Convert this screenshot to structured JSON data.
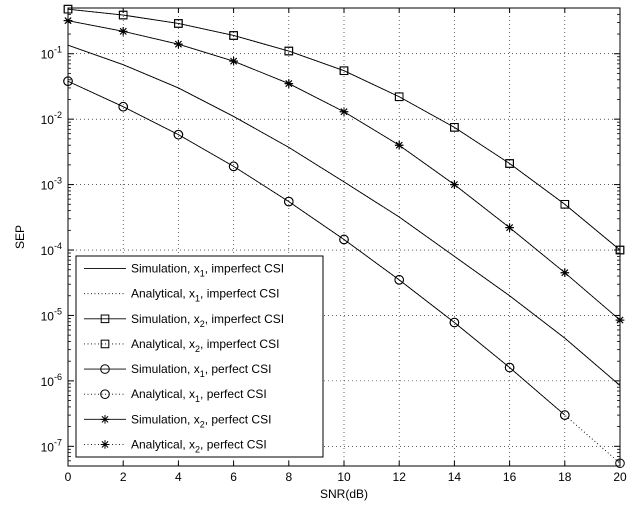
{
  "chart_data": {
    "type": "line",
    "xlabel": "SNR(dB)",
    "ylabel": "SEP",
    "xlim": [
      0,
      20
    ],
    "ylim": [
      5e-08,
      0.5
    ],
    "yscale": "log",
    "grid": true,
    "legend_position": "bottom-left",
    "x_ticks": [
      "0",
      "2",
      "4",
      "6",
      "8",
      "10",
      "12",
      "14",
      "16",
      "18",
      "20"
    ],
    "y_ticks": [
      {
        "base": "10",
        "exp": "-1"
      },
      {
        "base": "10",
        "exp": "-2"
      },
      {
        "base": "10",
        "exp": "-3"
      },
      {
        "base": "10",
        "exp": "-4"
      },
      {
        "base": "10",
        "exp": "-5"
      },
      {
        "base": "10",
        "exp": "-6"
      },
      {
        "base": "10",
        "exp": "-7"
      }
    ],
    "x": [
      0,
      2,
      4,
      6,
      8,
      10,
      12,
      14,
      16,
      18,
      20
    ],
    "series": [
      {
        "name_pre": "Simulation, x",
        "name_sub": "1",
        "name_post": ", imperfect CSI",
        "line": "solid",
        "marker": "none",
        "values": [
          0.135,
          0.068,
          0.03,
          0.011,
          0.0037,
          0.0011,
          0.00032,
          8e-05,
          2e-05,
          4.5e-06,
          8.5e-07
        ]
      },
      {
        "name_pre": "Analytical, x",
        "name_sub": "1",
        "name_post": ", imperfect CSI",
        "line": "dotted",
        "marker": "none",
        "values": [
          0.135,
          0.068,
          0.03,
          0.011,
          0.0037,
          0.0011,
          0.00032,
          8e-05,
          2e-05,
          4.5e-06,
          8.5e-07
        ]
      },
      {
        "name_pre": "Simulation, x",
        "name_sub": "2",
        "name_post": ", imperfect CSI",
        "line": "solid",
        "marker": "square",
        "values": [
          0.48,
          0.39,
          0.29,
          0.19,
          0.11,
          0.055,
          0.022,
          0.0075,
          0.0021,
          0.0005,
          0.0001
        ]
      },
      {
        "name_pre": "Analytical, x",
        "name_sub": "2",
        "name_post": ", imperfect CSI",
        "line": "dotted",
        "marker": "square",
        "values": [
          0.48,
          0.39,
          0.29,
          0.19,
          0.11,
          0.055,
          0.022,
          0.0075,
          0.0021,
          0.0005,
          0.0001
        ]
      },
      {
        "name_pre": "Simulation, x",
        "name_sub": "1",
        "name_post": ", perfect CSI",
        "line": "solid",
        "marker": "circle",
        "values": [
          0.038,
          0.0155,
          0.0058,
          0.0019,
          0.00055,
          0.000145,
          3.5e-05,
          7.8e-06,
          1.6e-06,
          3e-07,
          null
        ]
      },
      {
        "name_pre": "Analytical, x",
        "name_sub": "1",
        "name_post": ", perfect CSI",
        "line": "dotted",
        "marker": "circle",
        "values": [
          0.038,
          0.0155,
          0.0058,
          0.0019,
          0.00055,
          0.000145,
          3.5e-05,
          7.8e-06,
          1.6e-06,
          3e-07,
          5.5e-08
        ]
      },
      {
        "name_pre": "Simulation, x",
        "name_sub": "2",
        "name_post": ", perfect CSI",
        "line": "solid",
        "marker": "star",
        "values": [
          0.32,
          0.22,
          0.14,
          0.077,
          0.035,
          0.013,
          0.004,
          0.001,
          0.00022,
          4.5e-05,
          8.5e-06
        ]
      },
      {
        "name_pre": "Analytical, x",
        "name_sub": "2",
        "name_post": ", perfect CSI",
        "line": "dotted",
        "marker": "star",
        "values": [
          0.32,
          0.22,
          0.14,
          0.077,
          0.035,
          0.013,
          0.004,
          0.001,
          0.00022,
          4.5e-05,
          8.5e-06
        ]
      }
    ]
  }
}
